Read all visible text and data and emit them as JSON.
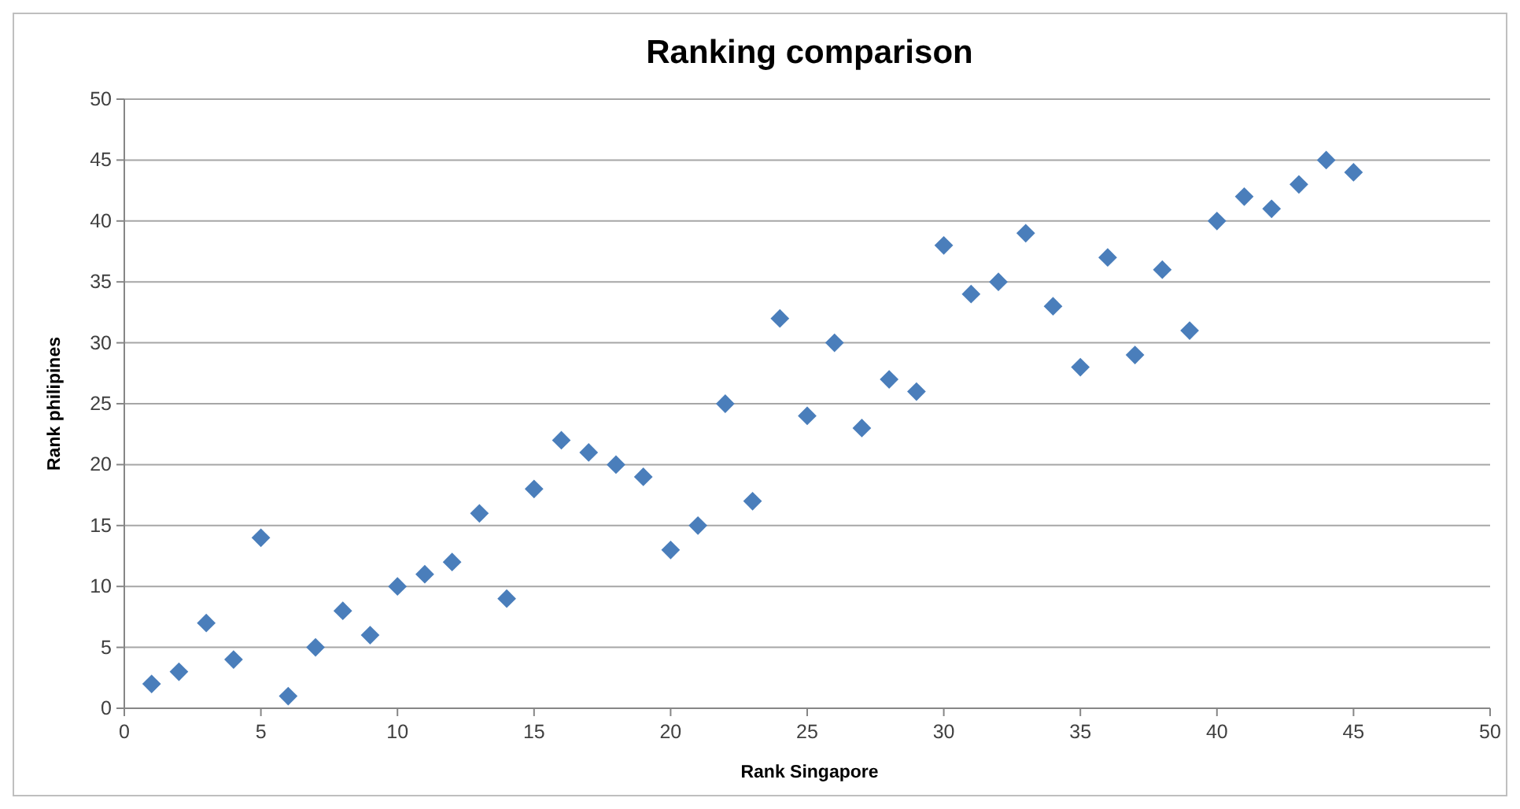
{
  "chart_data": {
    "type": "scatter",
    "title": "Ranking comparison",
    "xlabel": "Rank Singapore",
    "ylabel": "Rank philipines",
    "x": [
      1,
      2,
      3,
      4,
      5,
      6,
      7,
      8,
      9,
      10,
      11,
      12,
      13,
      14,
      15,
      16,
      17,
      18,
      19,
      20,
      21,
      22,
      23,
      24,
      25,
      26,
      27,
      28,
      29,
      30,
      31,
      32,
      33,
      34,
      35,
      36,
      37,
      38,
      39,
      40,
      41,
      42,
      43,
      44,
      45
    ],
    "series": [
      {
        "color": "#4a7ebb",
        "values": [
          2,
          3,
          7,
          4,
          14,
          1,
          5,
          8,
          6,
          10,
          11,
          12,
          16,
          9,
          18,
          22,
          21,
          20,
          19,
          13,
          15,
          25,
          17,
          32,
          24,
          30,
          23,
          27,
          26,
          38,
          34,
          35,
          39,
          33,
          28,
          37,
          29,
          36,
          31,
          40,
          42,
          41,
          43,
          45,
          44
        ]
      }
    ],
    "xlim": [
      0,
      50
    ],
    "xticks": [
      0,
      5,
      10,
      15,
      20,
      25,
      30,
      35,
      40,
      45,
      50
    ],
    "ylim": [
      0,
      50
    ],
    "yticks": [
      0,
      5,
      10,
      15,
      20,
      25,
      30,
      35,
      40,
      45,
      50
    ],
    "grid": "y",
    "marker": "diamond"
  }
}
